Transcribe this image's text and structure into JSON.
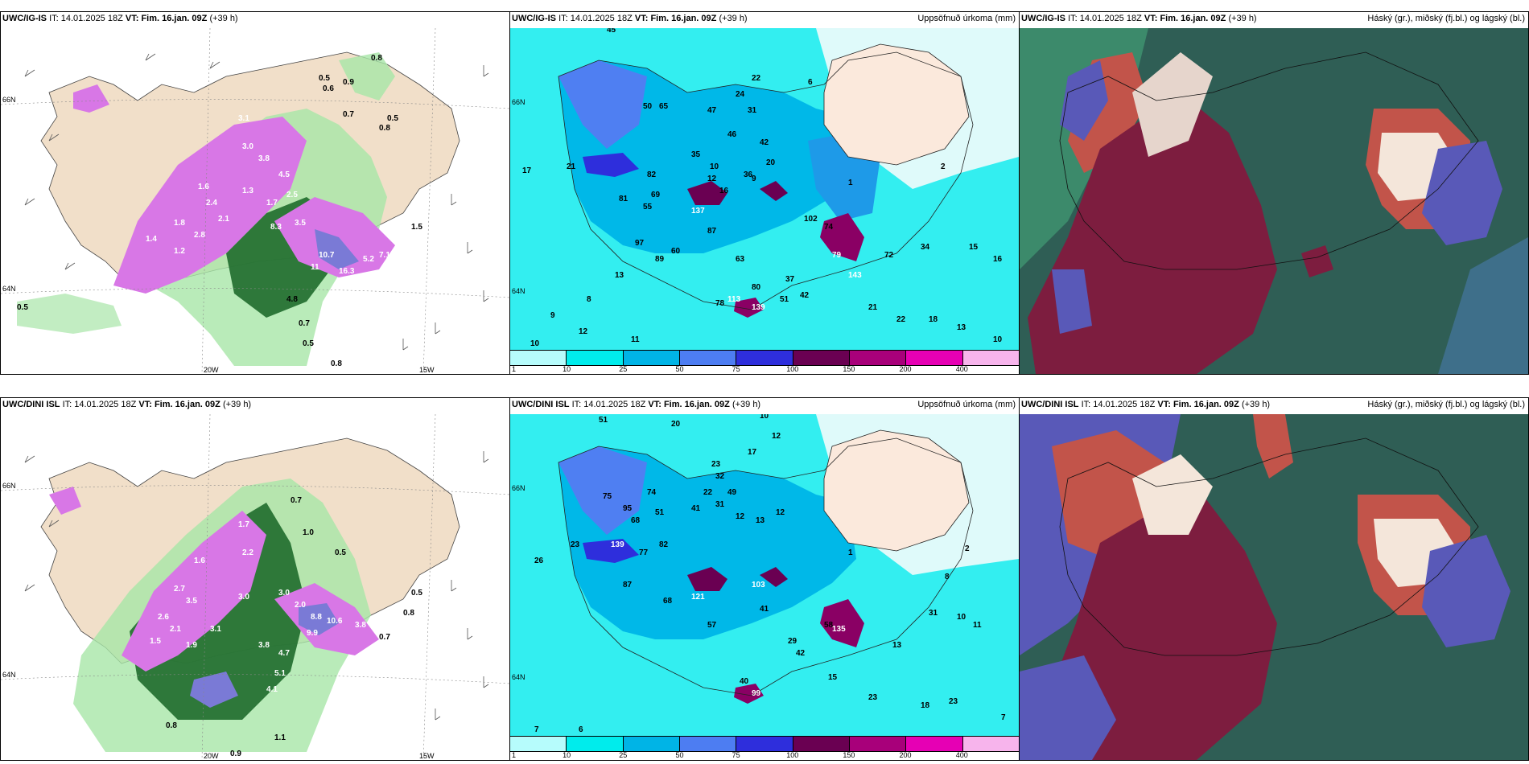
{
  "rows": [
    {
      "model": "UWC/IG-IS",
      "it_label": "IT:",
      "it_value": "14.01.2025 18Z",
      "vt_label": "VT:",
      "vt_value": "Fim. 16.jan. 09Z",
      "lead": "(+39 h)",
      "left_values": [
        "3.1",
        "1.6",
        "1.8",
        "1.4",
        "1.2",
        "2.8",
        "2.1",
        "2.4",
        "1.3",
        "1.7",
        "3.0",
        "3.8",
        "4.5",
        "2.5",
        "8.3",
        "10.7",
        "11",
        "16.3",
        "5.2",
        "7.1",
        "0.8",
        "0.5",
        "0.9",
        "0.6",
        "0.7",
        "0.5",
        "0.8",
        "4.8",
        "0.7",
        "0.5",
        "0.8",
        "0.5",
        "1.5",
        "3.5"
      ],
      "middle_values": [
        "45",
        "50",
        "65",
        "47",
        "24",
        "22",
        "31",
        "46",
        "42",
        "36",
        "20",
        "9",
        "10",
        "12",
        "35",
        "16",
        "82",
        "55",
        "81",
        "69",
        "97",
        "137",
        "87",
        "74",
        "102",
        "79",
        "139",
        "143",
        "60",
        "89",
        "63",
        "37",
        "42",
        "51",
        "78",
        "113",
        "80",
        "21",
        "22",
        "18",
        "13",
        "10",
        "12",
        "8",
        "9",
        "17",
        "21",
        "11",
        "10",
        "13",
        "15",
        "16",
        "34",
        "72",
        "1",
        "2",
        "6"
      ]
    },
    {
      "model": "UWC/DINI ISL",
      "it_label": "IT:",
      "it_value": "14.01.2025 18Z",
      "vt_label": "VT:",
      "vt_value": "Fim. 16.jan. 09Z",
      "lead": "(+39 h)",
      "left_values": [
        "1.6",
        "2.7",
        "3.5",
        "2.6",
        "2.1",
        "1.5",
        "1.9",
        "3.1",
        "3.8",
        "4.7",
        "5.1",
        "4.1",
        "2.0",
        "3.0",
        "8.8",
        "9.9",
        "10.6",
        "3.8",
        "3.0",
        "2.2",
        "1.7",
        "1.0",
        "0.5",
        "0.5",
        "0.8",
        "0.9",
        "1.1",
        "0.8",
        "0.7",
        "0.7"
      ],
      "middle_values": [
        "51",
        "20",
        "10",
        "12",
        "17",
        "23",
        "32",
        "22",
        "49",
        "41",
        "31",
        "12",
        "13",
        "12",
        "75",
        "68",
        "51",
        "82",
        "77",
        "139",
        "95",
        "74",
        "121",
        "68",
        "87",
        "41",
        "57",
        "103",
        "29",
        "42",
        "58",
        "135",
        "40",
        "99",
        "23",
        "18",
        "23",
        "7",
        "6",
        "7",
        "15",
        "13",
        "31",
        "10",
        "11",
        "1",
        "8",
        "2",
        "26",
        "23"
      ]
    }
  ],
  "middle_title": "Uppsöfnuð úrkoma (mm)",
  "right_title": "Háský (gr.), miðský (fj.bl.) og lágský (bl.)",
  "colorbar": {
    "labels": [
      "1",
      "10",
      "25",
      "50",
      "75",
      "100",
      "150",
      "200",
      "400"
    ],
    "colors": [
      "#b6fcfc",
      "#00ecec",
      "#00b4e6",
      "#4d7df2",
      "#2e2edc",
      "#6a0052",
      "#a8007a",
      "#e600b4",
      "#f7b4ec"
    ]
  },
  "longitude_labels": [
    "20W",
    "15W"
  ],
  "latitude_labels": [
    "66N",
    "64N"
  ]
}
